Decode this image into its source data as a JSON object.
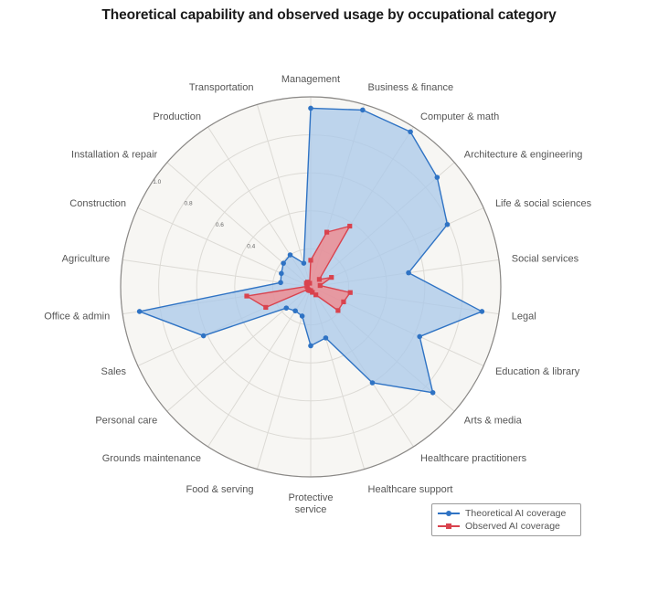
{
  "chart_data": {
    "type": "radar",
    "title": "Theoretical capability and observed usage by occupational category",
    "categories": [
      "Management",
      "Business & finance",
      "Computer & math",
      "Architecture & engineering",
      "Life & social sciences",
      "Social services",
      "Legal",
      "Education & library",
      "Arts & media",
      "Healthcare practitioners",
      "Healthcare support",
      "Protective service",
      "Food & serving",
      "Grounds maintenance",
      "Personal care",
      "Sales",
      "Office & admin",
      "Agriculture",
      "Construction",
      "Installation & repair",
      "Production",
      "Transportation"
    ],
    "series": [
      {
        "name": "Theoretical AI coverage",
        "color": "#2f73c4",
        "fill": "#a9c8ea",
        "marker": "circle",
        "values": [
          0.94,
          0.97,
          0.97,
          0.88,
          0.79,
          0.52,
          0.91,
          0.63,
          0.85,
          0.6,
          0.28,
          0.31,
          0.16,
          0.15,
          0.17,
          0.62,
          0.91,
          0.16,
          0.17,
          0.19,
          0.2,
          0.13
        ]
      },
      {
        "name": "Observed AI coverage",
        "color": "#d9434e",
        "fill": "#f08a8f",
        "marker": "square",
        "values": [
          0.14,
          0.3,
          0.38,
          0.06,
          0.12,
          0.05,
          0.21,
          0.19,
          0.19,
          0.05,
          0.03,
          0.02,
          0.02,
          0.02,
          0.02,
          0.26,
          0.34,
          0.02,
          0.02,
          0.03,
          0.03,
          0.02
        ]
      }
    ],
    "radial_axis": {
      "range": [
        0,
        1.0
      ],
      "ticks": [
        0.2,
        0.4,
        0.6,
        0.8,
        1.0
      ],
      "tick_labels": [
        "0.4",
        "0.6",
        "0.8",
        "1.0"
      ]
    },
    "grid": true,
    "legend_position": "bottom-right"
  },
  "legend": {
    "items": [
      {
        "label": "Theoretical AI coverage"
      },
      {
        "label": "Observed AI coverage"
      }
    ]
  }
}
